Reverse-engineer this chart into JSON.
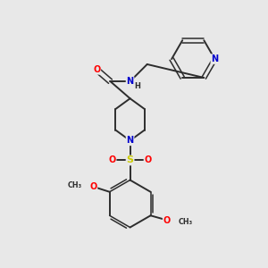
{
  "background_color": "#e8e8e8",
  "bond_color": "#2d2d2d",
  "atom_colors": {
    "N": "#0000cd",
    "O": "#ff0000",
    "S": "#cccc00",
    "C": "#2d2d2d",
    "H": "#2d2d2d"
  },
  "figsize": [
    3.0,
    3.0
  ],
  "dpi": 100
}
